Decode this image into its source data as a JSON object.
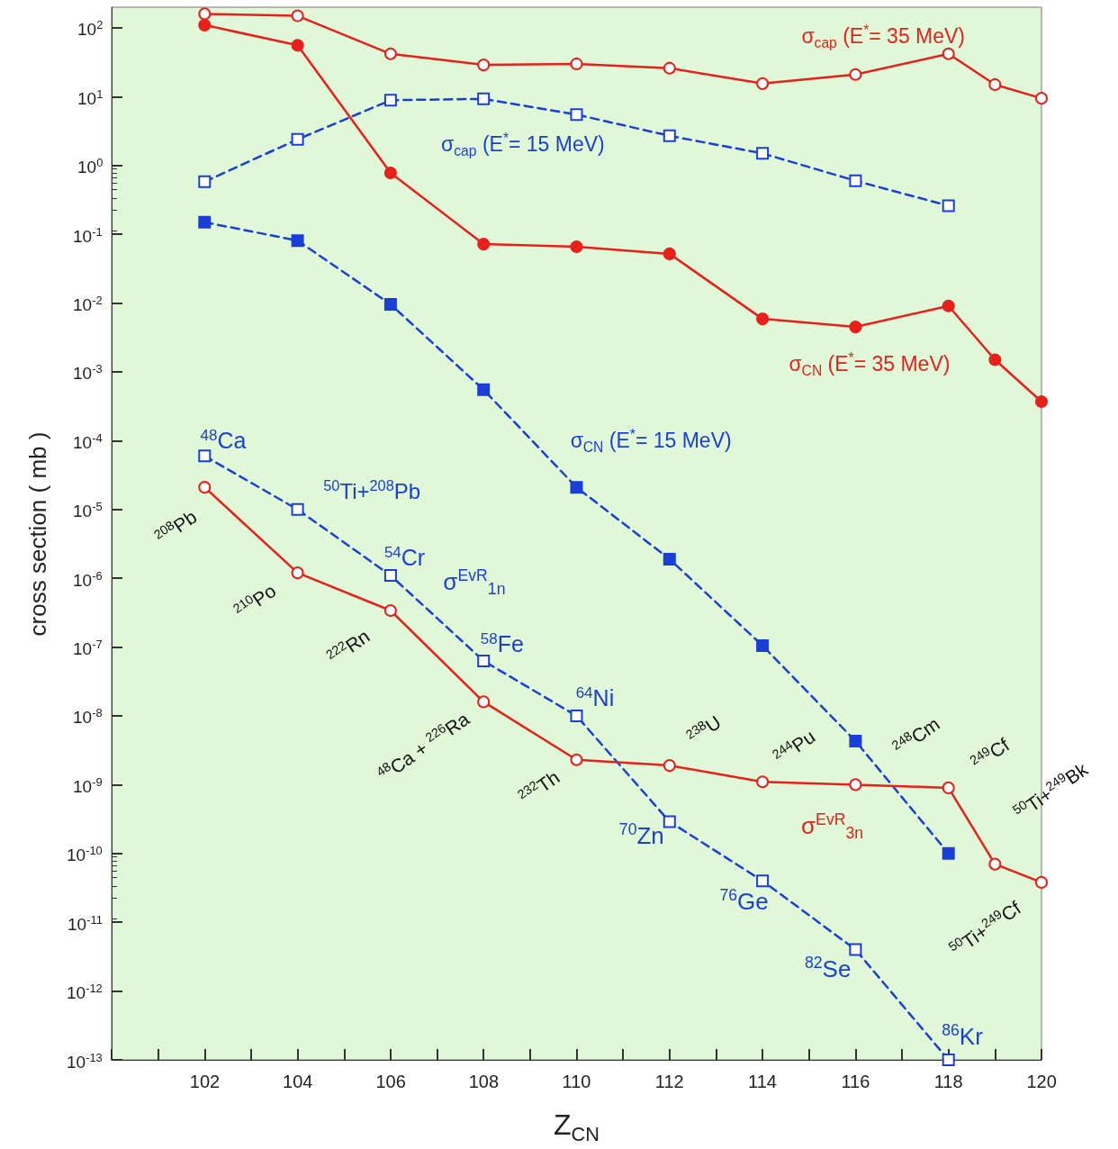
{
  "chart_data": {
    "type": "line",
    "xlabel": "Z$_{CN}$",
    "ylabel": "cross section  ( mb )",
    "xlim": [
      100,
      120
    ],
    "xticks": [
      {
        "value": 100,
        "label": null
      },
      {
        "value": 101,
        "label": null
      },
      102,
      {
        "value": 103,
        "label": null
      },
      104,
      {
        "value": 105,
        "label": null
      },
      106,
      {
        "value": 107,
        "label": null
      },
      108,
      {
        "value": 109,
        "label": null
      },
      110,
      {
        "value": 111,
        "label": null
      },
      112,
      {
        "value": 113,
        "label": null
      },
      114,
      {
        "value": 115,
        "label": null
      },
      116,
      {
        "value": 117,
        "label": null
      },
      118,
      {
        "value": 119,
        "label": null
      },
      120
    ],
    "ylim": [
      1e-13,
      200
    ],
    "log": true,
    "yticks": [
      {
        "value": 1e-13,
        "label": "10$^{-13}$"
      },
      {
        "value": 1e-12,
        "label": "10$^{-12}$"
      },
      {
        "value": 1e-11,
        "label": "10$^{-11}$"
      },
      {
        "value": 1e-10,
        "label": "10$^{-10}$"
      },
      {
        "value": 1e-09,
        "label": "10$^{-9}$"
      },
      {
        "value": 1e-08,
        "label": "10$^{-8}$"
      },
      {
        "value": 1e-07,
        "label": "10$^{-7}$"
      },
      {
        "value": 1e-06,
        "label": "10$^{-6}$"
      },
      {
        "value": 1e-05,
        "label": "10$^{-5}$"
      },
      {
        "value": 0.0001,
        "label": "10$^{-4}$"
      },
      {
        "value": 0.001,
        "label": "10$^{-3}$"
      },
      {
        "value": 0.01,
        "label": "10$^{-2}$"
      },
      {
        "value": 0.1,
        "label": "10$^{-1}$"
      },
      {
        "value": 1,
        "label": "10$^{0}$"
      },
      {
        "value": 10,
        "label": "10$^{1}$"
      },
      {
        "value": 100,
        "label": "10$^{2}$"
      }
    ],
    "grid": false,
    "series": [
      {
        "color": "#e8201c",
        "marker": "circle",
        "line_style": "solid",
        "x": [
          102,
          104,
          106,
          108,
          110,
          112,
          114,
          116,
          118,
          119,
          120
        ],
        "values": [
          160,
          150,
          42,
          29,
          30,
          26,
          15.5,
          21,
          42,
          15,
          9.5
        ]
      },
      {
        "color": "#e8201c",
        "marker": "circle",
        "line_style": "solid",
        "x": [
          102,
          104,
          106,
          108,
          110,
          112,
          114,
          116,
          118,
          119,
          120
        ],
        "values": [
          110,
          56,
          0.78,
          0.072,
          0.066,
          0.052,
          0.0059,
          0.0045,
          0.0091,
          0.0015,
          0.00037
        ]
      },
      {
        "color": "#1a3fd6",
        "marker": "square",
        "line_style": "dashed",
        "x": [
          102,
          104,
          106,
          108,
          110,
          112,
          114,
          116,
          118
        ],
        "values": [
          0.58,
          2.4,
          8.9,
          9.3,
          5.5,
          2.7,
          1.5,
          0.6,
          0.26
        ]
      },
      {
        "color": "#1a3fd6",
        "marker": "square",
        "line_style": "dashed",
        "x": [
          102,
          104,
          106,
          108,
          110,
          112,
          114,
          116,
          118
        ],
        "values": [
          0.15,
          0.081,
          0.0096,
          0.00055,
          2.1e-05,
          1.9e-06,
          1.05e-07,
          4.3e-09,
          1e-10
        ]
      },
      {
        "color": "#1a3fd6",
        "marker": "square",
        "line_style": "dashed",
        "x": [
          102,
          104,
          106,
          108,
          110,
          112,
          114,
          116,
          118
        ],
        "values": [
          6e-05,
          1e-05,
          1.1e-06,
          6.3e-08,
          1e-08,
          2.9e-10,
          4e-11,
          4e-12,
          1e-13
        ]
      },
      {
        "color": "#e8201c",
        "marker": "circle",
        "line_style": "solid",
        "x": [
          102,
          104,
          106,
          108,
          110,
          112,
          114,
          116,
          118,
          119,
          120
        ],
        "values": [
          2.1e-05,
          1.2e-06,
          3.4e-07,
          1.6e-08,
          2.3e-09,
          1.9e-09,
          1.1e-09,
          1e-09,
          9e-10,
          7e-11,
          3.8e-11
        ]
      }
    ],
    "annotations": [
      "σ$_{cap}$ (E$^{*}$= 35 MeV)",
      "σ$_{cap}$ (E$^{*}$= 15 MeV)",
      "σ$_{CN}$ (E$^{*}$= 35 MeV)",
      "σ$_{CN}$ (E$^{*}$= 15 MeV)",
      "σ$^{EvR}$$_{1n}$",
      "σ$^{EvR}$$_{3n}$",
      "$^{48}$Ca",
      "$^{50}$Ti+$^{208}$Pb",
      "$^{54}$Cr",
      "$^{58}$Fe",
      "$^{64}$Ni",
      "$^{70}$Zn",
      "$^{76}$Ge",
      "$^{82}$Se",
      "$^{86}$Kr",
      "$^{208}$Pb",
      "$^{210}$Po",
      "$^{222}$Rn",
      "$^{48}$Ca + $^{226}$Ra",
      "$^{232}$Th",
      "$^{238}$U",
      "$^{244}$Pu",
      "$^{248}$Cm",
      "$^{249}$Cf",
      "$^{50}$Ti+$^{249}$Bk",
      "$^{50}$Ti+$^{249}$Cf"
    ]
  }
}
